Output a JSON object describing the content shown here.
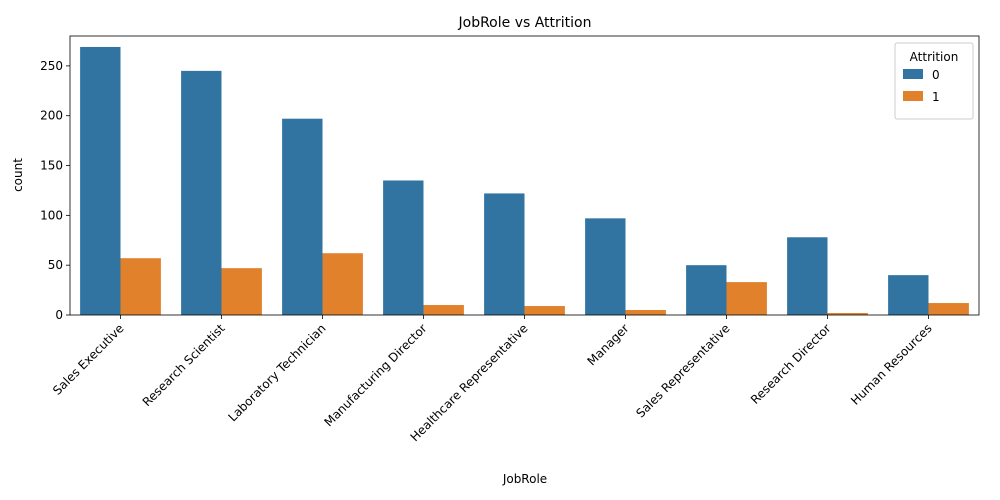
{
  "chart_data": {
    "type": "bar",
    "title": "JobRole vs Attrition",
    "xlabel": "JobRole",
    "ylabel": "count",
    "categories": [
      "Sales Executive",
      "Research Scientist",
      "Laboratory Technician",
      "Manufacturing Director",
      "Healthcare Representative",
      "Manager",
      "Sales Representative",
      "Research Director",
      "Human Resources"
    ],
    "series": [
      {
        "name": "0",
        "color": "#3274a1",
        "values": [
          269,
          245,
          197,
          135,
          122,
          97,
          50,
          78,
          40
        ]
      },
      {
        "name": "1",
        "color": "#e1812c",
        "values": [
          57,
          47,
          62,
          10,
          9,
          5,
          33,
          2,
          12
        ]
      }
    ],
    "ylim": [
      0,
      280
    ],
    "yticks": [
      0,
      50,
      100,
      150,
      200,
      250
    ],
    "legend": {
      "title": "Attrition",
      "position": "top-right"
    },
    "grid": false
  }
}
